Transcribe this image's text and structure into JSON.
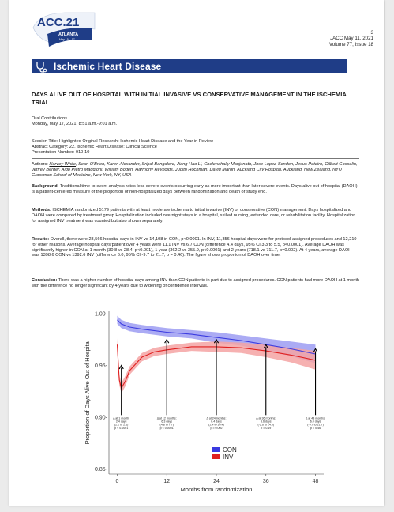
{
  "header": {
    "logo_text": "ACC.21",
    "logo_city": "ATLANTA",
    "logo_dates": "May 15 – 17",
    "page_number": "3",
    "journal_line": "JACC May 11, 2021",
    "volume_line": "Volume 77, Issue 18"
  },
  "banner": {
    "title": "Ischemic Heart Disease",
    "icon": "stethoscope-icon",
    "color": "#1f3d87"
  },
  "article": {
    "title": "DAYS ALIVE OUT OF HOSPITAL WITH INITIAL INVASIVE VS CONSERVATIVE MANAGEMENT IN THE ISCHEMIA TRIAL",
    "session_type": "Oral Contributions",
    "session_time": "Monday, May 17, 2021, 8:51 a.m.-9:01 a.m.",
    "session_title": "Session Title: Highlighted Original Research: Ischemic Heart Disease and the Year in Review",
    "abstract_category": "Abstract Category: 22. Ischemic Heart Disease: Clinical Science",
    "presentation_number": "Presentation Number: 910-10",
    "authors_label": "Authors:",
    "authors_presenter": "Harvey White",
    "authors_rest": ", Sean O'Brien, Karen Alexander, Sripal Bangalore, Jiang Hao Li, Chelenahally Manjunath, Jose Lopez-Sendon, Jesus Peteiro, Gilbert Gosselin, Jeffrey Berger, Aldo Pietro Maggioni, William Boden, Harmony Reynolds, Judith Hochman, David Maron, Auckland City Hospital, Auckland, New Zealand, NYU Grossman School of Medicine, New York, NY, USA",
    "background_label": "Background:",
    "background_text": " Traditional time-to-event analysis rates less severe events occurring early as more important than later severe events. Days alive out of hospital (DAOH) is a patient-centered measure of the proportion of non-hospitalized days between randomization and death or study end.",
    "methods_label": "Methods:",
    "methods_text": " ISCHEMIA randomized 5179 patients with at least moderate ischemia to initial invasive (INV) or conservative (CON) management. Days hospitalized and DAOH were compared by treatment group.Hospitalization included overnight stays in a hospital, skilled nursing, extended care, or rehabilitation facility. Hospitalization for assigned INV treatment was counted but also shown separately.",
    "results_label": "Results:",
    "results_text": " Overall, there were 23,566 hospital days in INV vs 14,108 in CON, p<0.0001. In INV, 11,356 hospital days were for protocol-assigned procedures and 12,210 for other reasons. Average hospital days/patient over 4 years were 11.1 INV vs 6.7 CON (difference 4.4 days, 95% CI 3.3 to 5.5, p<0.0001). Average DAOH was significantly higher in CON at 1 month (30.8 vs 28.4, p<0.001), 1 year (362.2 vs 355.9, p<0.0001) and 2 years (718.1 vs 711.7, p=0.002). At 4 years, average DAOH was 1398.6 CON vs 1392.6 INV (difference 6.0, 95% CI -9.7 to 21.7, p = 0.46). The figure shows proportion of DAOH over time.",
    "conclusion_label": "Conclusion:",
    "conclusion_text": " There was a higher number of hospital days among INV than CON patients in part due to assigned procedures. CON patients had more DAOH at 1 month with the difference no longer significant by 4 years due to widening of confidence intervals."
  },
  "chart_data": {
    "type": "line",
    "xlabel": "Months from randomization",
    "ylabel": "Proportion of Days Alive Out of Hospital",
    "xlim": [
      -2,
      50
    ],
    "ylim": [
      0.845,
      1.003
    ],
    "xticks": [
      0,
      12,
      24,
      36,
      48
    ],
    "yticks": [
      0.85,
      0.9,
      0.95,
      1.0
    ],
    "ytick_labels": [
      "0.85-",
      "0.90-",
      "0.95-",
      "1.00-"
    ],
    "legend_position": "bottom-center",
    "series": [
      {
        "name": "CON",
        "color": "#3a3ae0",
        "band_color": "#9c9cf2",
        "x": [
          0,
          1,
          3,
          6,
          12,
          18,
          24,
          30,
          36,
          42,
          48
        ],
        "y": [
          0.994,
          0.99,
          0.987,
          0.985,
          0.982,
          0.98,
          0.977,
          0.974,
          0.97,
          0.966,
          0.961
        ],
        "band": [
          0.004,
          0.004,
          0.004,
          0.004,
          0.004,
          0.004,
          0.005,
          0.005,
          0.006,
          0.007,
          0.009
        ]
      },
      {
        "name": "INV",
        "color": "#e02020",
        "band_color": "#f5a3a3",
        "x": [
          0,
          0.5,
          1,
          2,
          3,
          6,
          9,
          12,
          18,
          24,
          30,
          36,
          42,
          48
        ],
        "y": [
          0.97,
          0.936,
          0.928,
          0.935,
          0.945,
          0.958,
          0.963,
          0.965,
          0.968,
          0.968,
          0.967,
          0.964,
          0.96,
          0.955
        ],
        "band": [
          0.006,
          0.005,
          0.005,
          0.005,
          0.004,
          0.004,
          0.004,
          0.004,
          0.004,
          0.005,
          0.005,
          0.006,
          0.007,
          0.009
        ]
      }
    ],
    "annotations": [
      {
        "x": 1,
        "arrow_top": 0.95,
        "lines": [
          "Δ at 1 month:",
          "2.4 days",
          "(2.2 to 2.6)",
          "p < 0.0001"
        ]
      },
      {
        "x": 12,
        "arrow_top": 0.975,
        "lines": [
          "Δ at 12 months:",
          "6.3 days",
          "(4.8 to 7.7)",
          "p < 0.0001"
        ]
      },
      {
        "x": 24,
        "arrow_top": 0.975,
        "lines": [
          "Δ at 24 months:",
          "6.4 days",
          "(2.4 to 10.4)",
          "p = 0.002"
        ]
      },
      {
        "x": 36,
        "arrow_top": 0.97,
        "lines": [
          "Δ at 36 months:",
          "5.6 days",
          "(-2.6 to 14.0)",
          "p = 0.19"
        ]
      },
      {
        "x": 48,
        "arrow_top": 0.966,
        "lines": [
          "Δ at 48 months:",
          "6.0 days",
          "(-9.7 to 21.7)",
          "p = 0.46"
        ]
      }
    ]
  }
}
